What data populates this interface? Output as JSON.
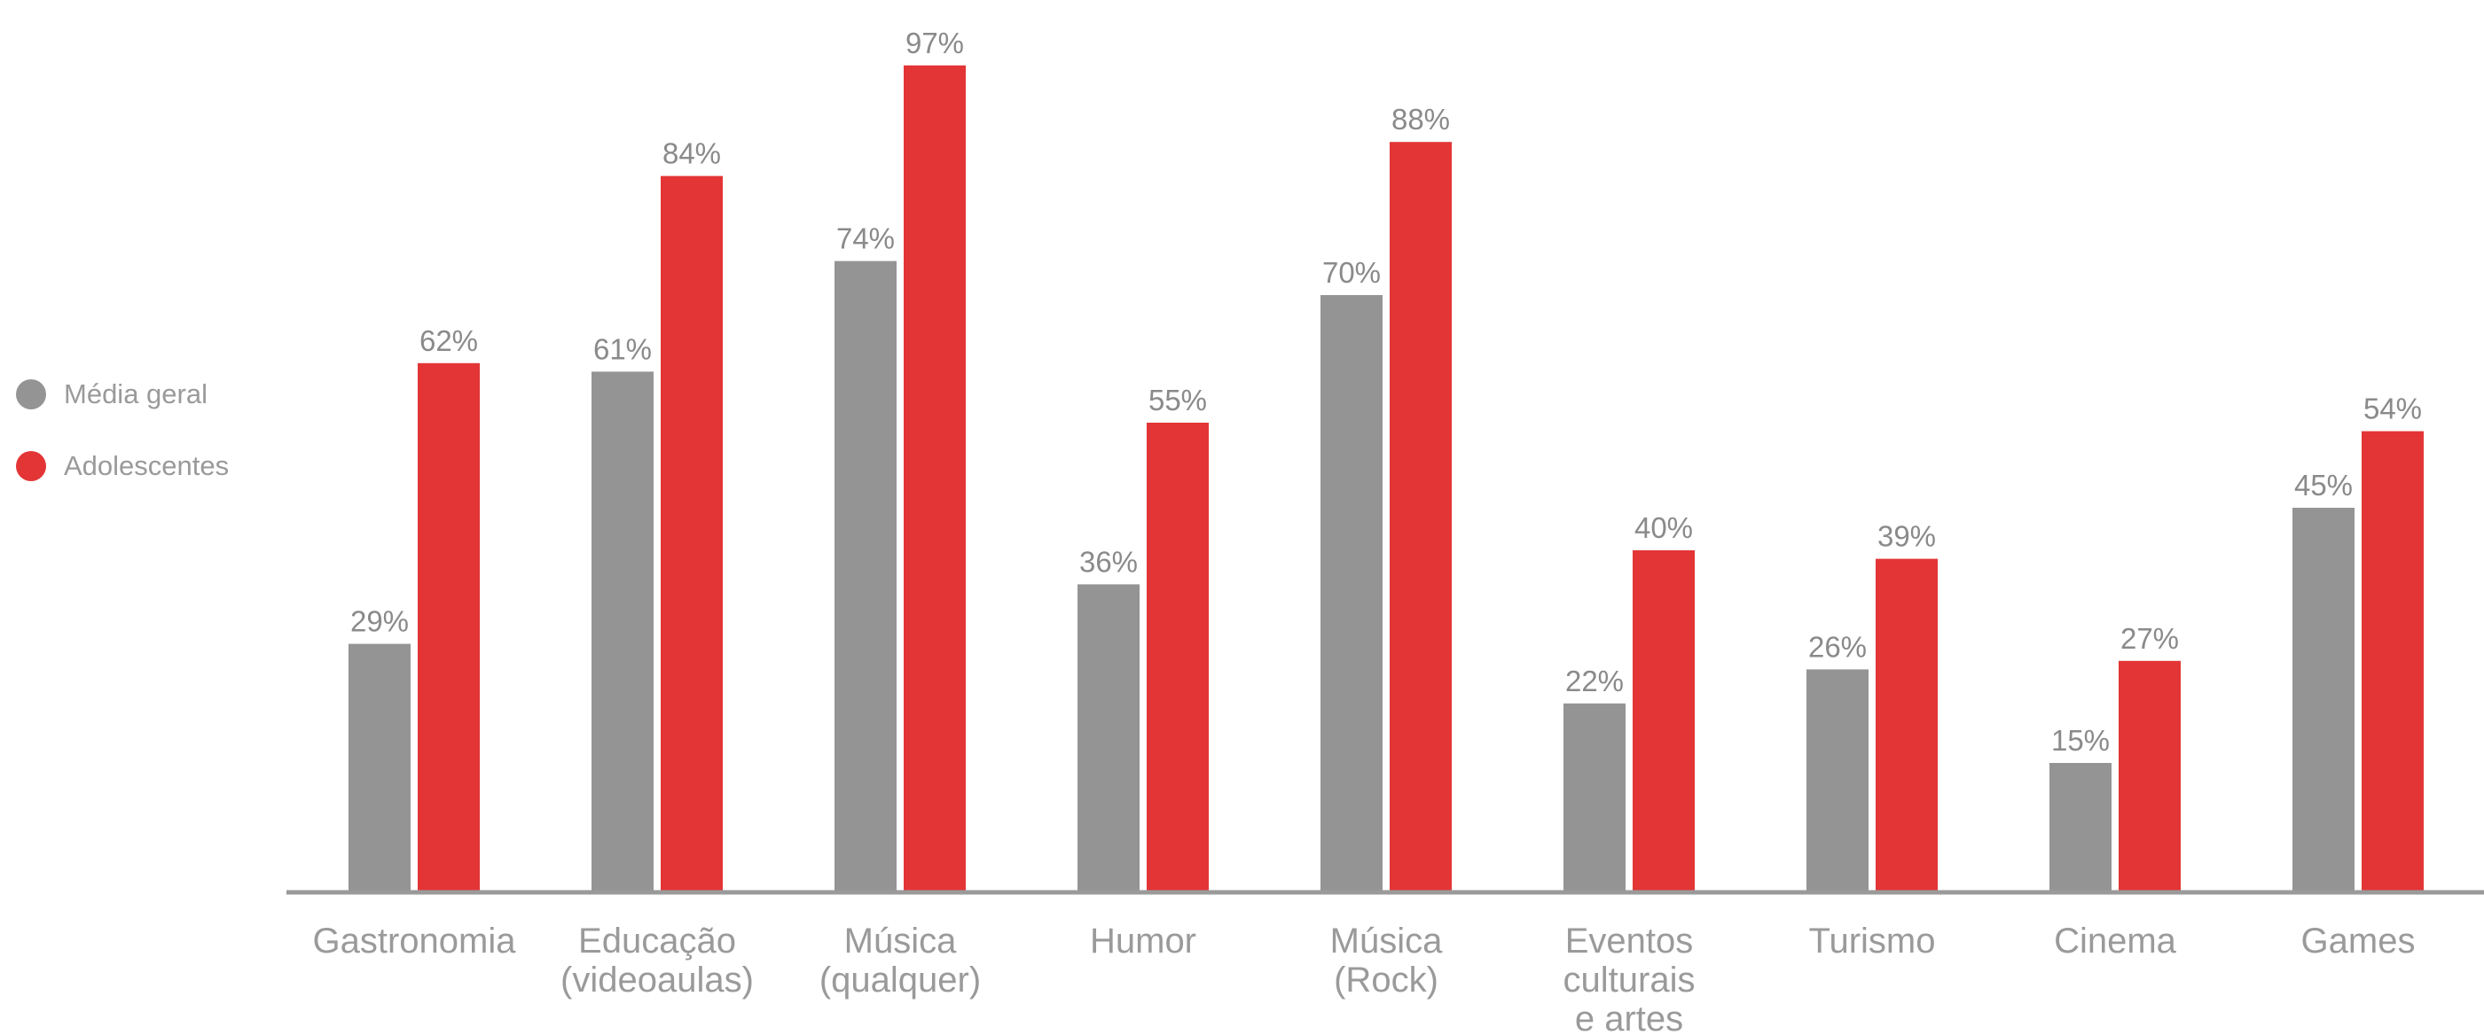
{
  "colors": {
    "media_geral": "#949494",
    "adolescentes": "#e33536",
    "axis": "#9a9a9a",
    "label": "#8a8a8a"
  },
  "legend": [
    {
      "label": "Média geral",
      "color": "#949494"
    },
    {
      "label": "Adolescentes",
      "color": "#e33536"
    }
  ],
  "chart_data": {
    "type": "bar",
    "title": "",
    "xlabel": "",
    "ylabel": "",
    "ylim": [
      0,
      100
    ],
    "grid": false,
    "legend_position": "left",
    "categories": [
      [
        "Gastronomia"
      ],
      [
        "Educação",
        "(videoaulas)"
      ],
      [
        "Música",
        "(qualquer)"
      ],
      [
        "Humor"
      ],
      [
        "Música",
        "(Rock)"
      ],
      [
        "Eventos",
        "culturais",
        "e artes"
      ],
      [
        "Turismo"
      ],
      [
        "Cinema"
      ],
      [
        "Games"
      ]
    ],
    "series": [
      {
        "name": "Média geral",
        "values": [
          29,
          61,
          74,
          36,
          70,
          22,
          26,
          15,
          45
        ],
        "labels": [
          "29%",
          "61%",
          "74%",
          "36%",
          "70%",
          "22%",
          "26%",
          "15%",
          "45%"
        ]
      },
      {
        "name": "Adolescentes",
        "values": [
          62,
          84,
          97,
          55,
          88,
          40,
          39,
          27,
          54
        ],
        "labels": [
          "62%",
          "84%",
          "97%",
          "55%",
          "88%",
          "40%",
          "39%",
          "27%",
          "54%"
        ]
      }
    ]
  }
}
